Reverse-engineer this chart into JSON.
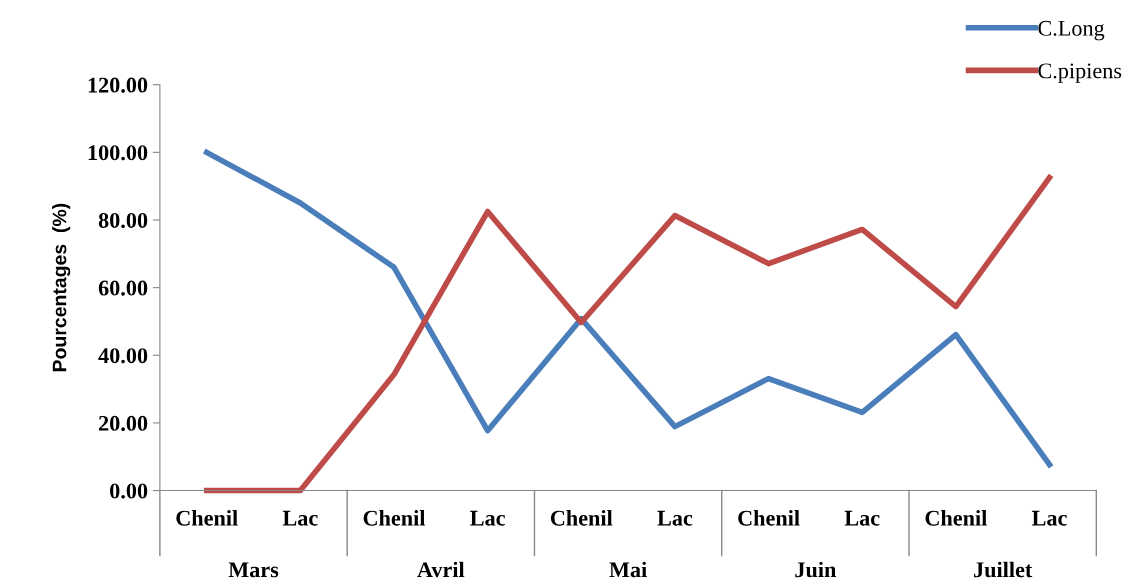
{
  "chart_data": {
    "type": "line",
    "categories": [
      "Chenil",
      "Lac",
      "Chenil",
      "Lac",
      "Chenil",
      "Lac",
      "Chenil",
      "Lac",
      "Chenil",
      "Lac"
    ],
    "series": [
      {
        "name": "C.Long",
        "color": "#4a7ebb",
        "values": [
          100,
          85,
          66,
          17.7,
          50.8,
          18.9,
          33.1,
          23.1,
          46.1,
          7.7
        ]
      },
      {
        "name": "C.pipiens",
        "color": "#be4b48",
        "values": [
          0,
          0,
          34.3,
          82.5,
          49.7,
          81.3,
          67.1,
          77.2,
          54.4,
          92.5
        ]
      }
    ],
    "annotations": [
      "Mars",
      "Avril",
      "Mai",
      "Juin",
      "Juillet"
    ],
    "ylabel": "Pourcentages  (%)",
    "ylim": [
      0,
      120
    ],
    "yticks": [
      {
        "value": 0,
        "label": "0.00"
      },
      {
        "value": 20,
        "label": "20.00"
      },
      {
        "value": 40,
        "label": "40.00"
      },
      {
        "value": 60,
        "label": "60.00"
      },
      {
        "value": 80,
        "label": "80.00"
      },
      {
        "value": 100,
        "label": "100.00"
      },
      {
        "value": 120,
        "label": "120.00"
      }
    ],
    "grid": false,
    "legend": "top right",
    "marker": "none",
    "line_style": "solid"
  }
}
